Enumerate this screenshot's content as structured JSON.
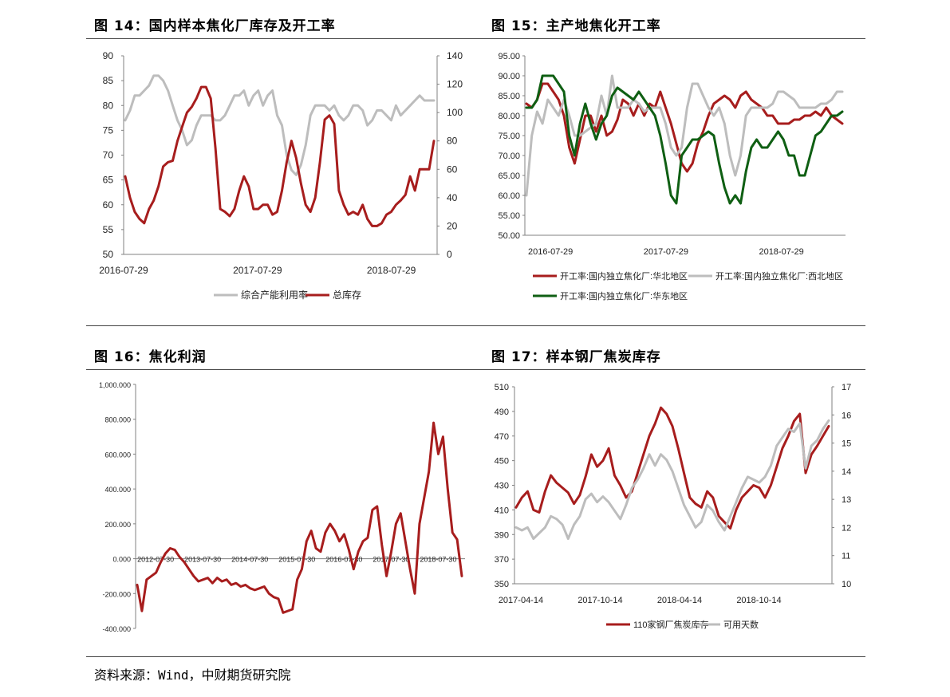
{
  "page": {
    "source": "资料来源：Wind，中财期货研究院"
  },
  "colors": {
    "red": "#a71d1d",
    "gray": "#bdbdbd",
    "green": "#0f5f13",
    "axis": "#808080"
  },
  "chart_data": [
    {
      "id": "c14",
      "type": "line",
      "title": "图 14：国内样本焦化厂库存及开工率",
      "y_left": {
        "min": 50,
        "max": 90,
        "ticks": [
          50,
          55,
          60,
          65,
          70,
          75,
          80,
          85,
          90
        ]
      },
      "y_right": {
        "min": 0,
        "max": 140,
        "ticks": [
          0,
          20,
          40,
          60,
          80,
          100,
          120,
          140
        ]
      },
      "x_ticks": [
        "2016-07-29",
        "2017-07-29",
        "2018-07-29"
      ],
      "x_tick_pos": [
        0,
        0.427,
        0.854
      ],
      "series": [
        {
          "name": "综合产能利用率",
          "color": "gray",
          "axis": "left",
          "values": [
            77,
            79,
            82,
            82,
            83,
            84,
            86,
            86,
            85,
            83,
            80,
            77,
            75,
            72,
            73,
            76,
            78,
            78,
            78,
            77,
            77,
            78,
            80,
            82,
            82,
            83,
            80,
            82,
            83,
            80,
            82,
            83,
            78,
            76,
            70,
            67,
            66,
            68,
            72,
            78,
            80,
            80,
            80,
            79,
            80,
            78,
            77,
            78,
            80,
            80,
            79,
            76,
            77,
            79,
            79,
            78,
            77,
            80,
            78,
            79,
            80,
            81,
            82,
            81,
            81,
            81
          ]
        },
        {
          "name": "总库存",
          "color": "red",
          "axis": "right",
          "values": [
            55,
            40,
            30,
            25,
            22,
            32,
            38,
            48,
            62,
            65,
            66,
            80,
            90,
            100,
            104,
            110,
            118,
            118,
            110,
            75,
            32,
            30,
            27,
            32,
            45,
            55,
            48,
            32,
            32,
            35,
            35,
            28,
            30,
            45,
            65,
            80,
            68,
            50,
            35,
            30,
            40,
            65,
            95,
            98,
            92,
            45,
            35,
            28,
            30,
            28,
            35,
            25,
            20,
            20,
            22,
            28,
            30,
            35,
            38,
            42,
            55,
            45,
            60,
            60,
            60,
            80
          ]
        }
      ],
      "legend": [
        "综合产能利用率",
        "总库存"
      ]
    },
    {
      "id": "c15",
      "type": "line",
      "title": "图 15：主产地焦化开工率",
      "y_left": {
        "min": 50,
        "max": 95,
        "ticks": [
          "50.00",
          "55.00",
          "60.00",
          "65.00",
          "70.00",
          "75.00",
          "80.00",
          "85.00",
          "90.00",
          "95.00"
        ]
      },
      "x_ticks": [
        "2016-07-29",
        "2017-07-29",
        "2018-07-29"
      ],
      "x_tick_pos": [
        0.08,
        0.44,
        0.8
      ],
      "series": [
        {
          "name": "开工率:国内独立焦化厂:华北地区",
          "color": "red",
          "values": [
            83,
            82,
            84,
            88,
            88,
            86,
            84,
            80,
            72,
            68,
            74,
            80,
            80,
            76,
            80,
            75,
            76,
            79,
            84,
            83,
            80,
            83,
            80,
            83,
            82,
            86,
            82,
            78,
            73,
            68,
            66,
            68,
            73,
            76,
            80,
            83,
            84,
            85,
            84,
            82,
            85,
            86,
            84,
            83,
            82,
            80,
            80,
            78,
            78,
            78,
            79,
            79,
            80,
            80,
            81,
            80,
            82,
            80,
            79,
            78
          ]
        },
        {
          "name": "开工率:国内独立焦化厂:西北地区",
          "color": "gray",
          "values": [
            60,
            75,
            81,
            78,
            84,
            82,
            80,
            84,
            80,
            75,
            75,
            76,
            77,
            78,
            85,
            80,
            90,
            82,
            82,
            82,
            84,
            83,
            81,
            82,
            82,
            82,
            78,
            72,
            70,
            72,
            82,
            88,
            88,
            85,
            82,
            80,
            82,
            78,
            70,
            65,
            70,
            80,
            82,
            82,
            82,
            82,
            83,
            86,
            86,
            85,
            84,
            82,
            82,
            82,
            82,
            83,
            83,
            84,
            86,
            86
          ]
        },
        {
          "name": "开工率:国内独立焦化厂:华东地区",
          "color": "green",
          "values": [
            82,
            82,
            84,
            90,
            90,
            90,
            88,
            86,
            75,
            70,
            78,
            83,
            78,
            74,
            78,
            80,
            85,
            87,
            86,
            85,
            84,
            86,
            84,
            82,
            80,
            75,
            68,
            60,
            58,
            70,
            72,
            74,
            74,
            75,
            76,
            75,
            68,
            62,
            58,
            60,
            58,
            66,
            72,
            74,
            72,
            72,
            74,
            76,
            74,
            70,
            70,
            65,
            65,
            70,
            75,
            76,
            78,
            80,
            80,
            81
          ]
        }
      ],
      "legend": [
        "开工率:国内独立焦化厂:华北地区",
        "开工率:国内独立焦化厂:西北地区",
        "开工率:国内独立焦化厂:华东地区"
      ]
    },
    {
      "id": "c16",
      "type": "line",
      "title": "图 16：焦化利润",
      "y_left": {
        "min": -400,
        "max": 1000,
        "ticks": [
          "-400.000",
          "-200.000",
          "0.000",
          "200.000",
          "400.000",
          "600.000",
          "800.000",
          "1,000.000"
        ]
      },
      "x_ticks": [
        "2012-07-30",
        "2013-07-30",
        "2014-07-30",
        "2015-07-30",
        "2016-07-30",
        "2017-07-30",
        "2018-07-30"
      ],
      "x_tick_pos": [
        0.005,
        0.148,
        0.291,
        0.434,
        0.577,
        0.72,
        0.863
      ],
      "series": [
        {
          "name": "",
          "color": "red",
          "values": [
            -150,
            -300,
            -120,
            -100,
            -80,
            -20,
            30,
            60,
            50,
            10,
            -20,
            -60,
            -100,
            -130,
            -120,
            -110,
            -140,
            -110,
            -130,
            -120,
            -150,
            -140,
            -160,
            -150,
            -170,
            -180,
            -170,
            -160,
            -200,
            -220,
            -230,
            -310,
            -300,
            -290,
            -120,
            -60,
            100,
            160,
            60,
            40,
            150,
            200,
            160,
            100,
            140,
            50,
            -60,
            40,
            100,
            120,
            280,
            300,
            80,
            -100,
            40,
            200,
            260,
            100,
            -60,
            -200,
            200,
            350,
            500,
            780,
            600,
            700,
            400,
            150,
            110,
            -100
          ]
        }
      ]
    },
    {
      "id": "c17",
      "type": "line",
      "title": "图 17：样本钢厂焦炭库存",
      "y_left": {
        "min": 350,
        "max": 510,
        "ticks": [
          350,
          370,
          390,
          410,
          430,
          450,
          470,
          490,
          510
        ]
      },
      "y_right": {
        "min": 10,
        "max": 17,
        "ticks": [
          10,
          11,
          12,
          13,
          14,
          15,
          16,
          17
        ]
      },
      "x_ticks": [
        "2017-04-14",
        "2017-10-14",
        "2018-04-14",
        "2018-10-14"
      ],
      "x_tick_pos": [
        0.02,
        0.27,
        0.52,
        0.77
      ],
      "series": [
        {
          "name": "110家钢厂焦炭库存",
          "color": "red",
          "axis": "left",
          "values": [
            412,
            420,
            425,
            410,
            408,
            425,
            438,
            432,
            428,
            424,
            415,
            422,
            437,
            455,
            445,
            450,
            460,
            438,
            430,
            420,
            425,
            440,
            455,
            470,
            480,
            493,
            488,
            478,
            460,
            440,
            420,
            415,
            412,
            425,
            420,
            405,
            400,
            395,
            410,
            420,
            425,
            430,
            428,
            420,
            430,
            445,
            460,
            470,
            482,
            488,
            440,
            455,
            462,
            470,
            478
          ]
        },
        {
          "name": "可用天数",
          "color": "gray",
          "axis": "right",
          "values": [
            12.0,
            11.9,
            12.0,
            11.6,
            11.8,
            12.0,
            12.4,
            12.3,
            12.1,
            11.6,
            12.1,
            12.4,
            13.0,
            13.2,
            12.9,
            13.1,
            12.9,
            12.6,
            12.3,
            12.8,
            13.4,
            13.7,
            14.1,
            14.6,
            14.2,
            14.6,
            14.4,
            14.0,
            13.4,
            12.8,
            12.4,
            12.0,
            12.2,
            12.8,
            12.6,
            12.2,
            11.9,
            12.4,
            12.9,
            13.4,
            13.8,
            13.7,
            13.6,
            13.8,
            14.2,
            14.9,
            15.2,
            15.5,
            15.4,
            15.7,
            14.1,
            14.9,
            15.1,
            15.5,
            15.8
          ]
        }
      ],
      "legend": [
        "110家钢厂焦炭库存",
        "可用天数"
      ]
    }
  ]
}
